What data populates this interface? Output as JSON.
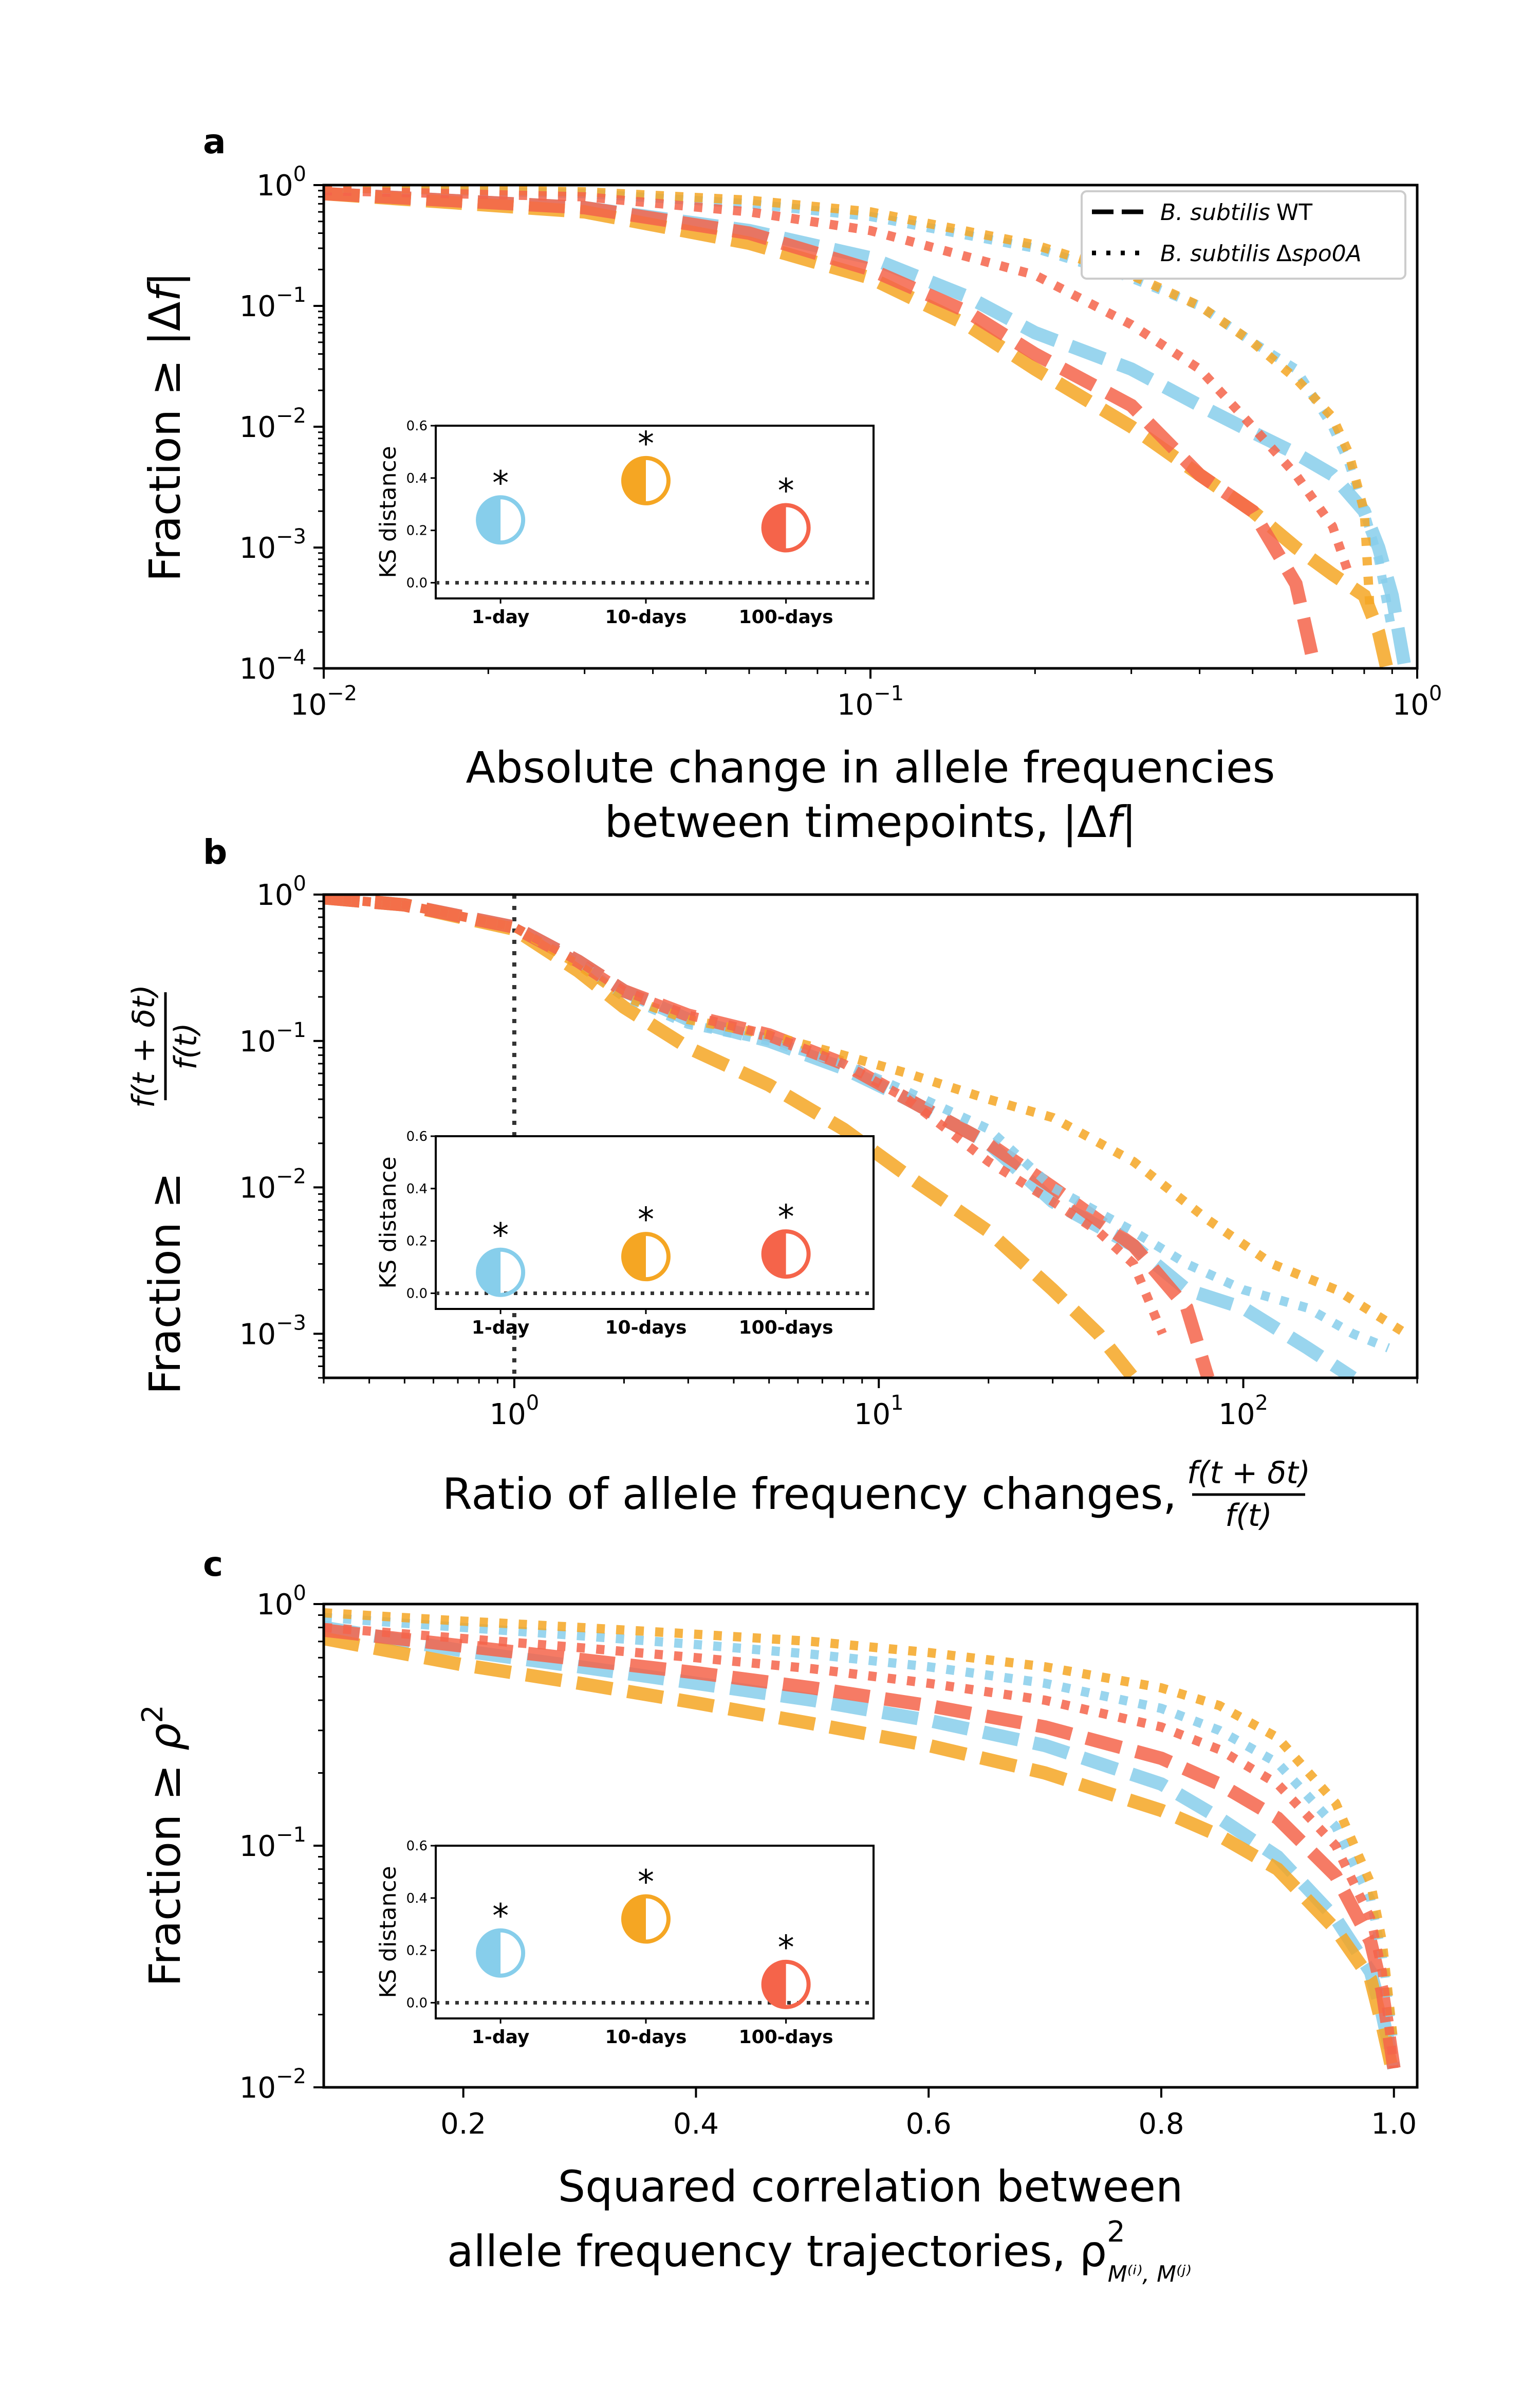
{
  "colors": {
    "day1": "#87ceeb",
    "day10": "#f5a623",
    "day100": "#f5644a",
    "axis": "#000000",
    "zero_line": "#333333"
  },
  "legend": {
    "wt": {
      "italic": "B. subtilis",
      "rest": "WT"
    },
    "spo": {
      "italic": "B. subtilis",
      "delta": "Δ",
      "italic2": "spo0A"
    }
  },
  "timescales": [
    "1-day",
    "10-days",
    "100-days"
  ],
  "panels": {
    "a": {
      "letter": "a",
      "ylabel_parts": [
        "Fraction ",
        "≥",
        " |Δ",
        "f",
        "|"
      ],
      "xlabel_line1": "Absolute change in allele frequencies",
      "xlabel_line2_parts": [
        "between timepoints, |Δ",
        "f",
        "|"
      ],
      "xticks": [
        {
          "v": 0.01,
          "b": "10",
          "e": "−2"
        },
        {
          "v": 0.1,
          "b": "10",
          "e": "−1"
        },
        {
          "v": 1,
          "b": "10",
          "e": "0"
        }
      ],
      "yticks": [
        {
          "v": 1,
          "b": "10",
          "e": "0"
        },
        {
          "v": 0.1,
          "b": "10",
          "e": "−1"
        },
        {
          "v": 0.01,
          "b": "10",
          "e": "−2"
        },
        {
          "v": 0.001,
          "b": "10",
          "e": "−3"
        },
        {
          "v": 0.0001,
          "b": "10",
          "e": "−4"
        }
      ]
    },
    "b": {
      "letter": "b",
      "ylabel_parts": [
        "Fraction ",
        "≥"
      ],
      "ylabel_frac_num": "f(t + δt)",
      "ylabel_frac_den": "f(t)",
      "xlabel_text": "Ratio of allele frequency changes,",
      "xlabel_frac_num": "f(t + δt)",
      "xlabel_frac_den": "f(t)",
      "xticks": [
        {
          "v": 1,
          "b": "10",
          "e": "0"
        },
        {
          "v": 10,
          "b": "10",
          "e": "1"
        },
        {
          "v": 100,
          "b": "10",
          "e": "2"
        }
      ],
      "yticks": [
        {
          "v": 1,
          "b": "10",
          "e": "0"
        },
        {
          "v": 0.1,
          "b": "10",
          "e": "−1"
        },
        {
          "v": 0.01,
          "b": "10",
          "e": "−2"
        },
        {
          "v": 0.001,
          "b": "10",
          "e": "−3"
        }
      ]
    },
    "c": {
      "letter": "c",
      "ylabel_parts": [
        "Fraction ",
        "≥",
        " ρ",
        "2"
      ],
      "xlabel_line1": "Squared correlation between",
      "xlabel_line2_text": "allele frequency trajectories, ρ",
      "xlabel_line2_sup": "2",
      "xlabel_line2_sub": "M⁽ⁱ⁾, M⁽ʲ⁾",
      "xticks": [
        {
          "v": 0.2,
          "t": "0.2"
        },
        {
          "v": 0.4,
          "t": "0.4"
        },
        {
          "v": 0.6,
          "t": "0.6"
        },
        {
          "v": 0.8,
          "t": "0.8"
        },
        {
          "v": 1.0,
          "t": "1.0"
        }
      ],
      "yticks": [
        {
          "v": 1,
          "b": "10",
          "e": "0"
        },
        {
          "v": 0.1,
          "b": "10",
          "e": "−1"
        },
        {
          "v": 0.01,
          "b": "10",
          "e": "−2"
        }
      ]
    }
  },
  "inset": {
    "ylabel": "KS distance",
    "yticks": [
      "0.0",
      "0.2",
      "0.4",
      "0.6"
    ],
    "marker": "*"
  },
  "chart_data": [
    {
      "panel": "a",
      "type": "line",
      "xscale": "log",
      "yscale": "log",
      "xlim": [
        0.01,
        1.0
      ],
      "ylim": [
        0.0001,
        1.0
      ],
      "series": [
        {
          "strain": "WT",
          "timescale": "1-day",
          "x": [
            0.01,
            0.03,
            0.06,
            0.1,
            0.15,
            0.2,
            0.3,
            0.4,
            0.5,
            0.6,
            0.7,
            0.8,
            0.85,
            0.9,
            0.95
          ],
          "y": [
            0.85,
            0.65,
            0.42,
            0.25,
            0.12,
            0.06,
            0.03,
            0.015,
            0.009,
            0.006,
            0.004,
            0.002,
            0.001,
            0.0004,
            0.0001
          ]
        },
        {
          "strain": "WT",
          "timescale": "10-days",
          "x": [
            0.01,
            0.03,
            0.06,
            0.1,
            0.15,
            0.2,
            0.3,
            0.4,
            0.5,
            0.6,
            0.7,
            0.8,
            0.85,
            0.88
          ],
          "y": [
            0.85,
            0.6,
            0.33,
            0.17,
            0.07,
            0.03,
            0.01,
            0.004,
            0.002,
            0.001,
            0.0006,
            0.0004,
            0.0002,
            0.0001
          ]
        },
        {
          "strain": "WT",
          "timescale": "100-days",
          "x": [
            0.01,
            0.03,
            0.06,
            0.1,
            0.15,
            0.2,
            0.3,
            0.4,
            0.5,
            0.6,
            0.65
          ],
          "y": [
            0.85,
            0.65,
            0.4,
            0.2,
            0.09,
            0.04,
            0.015,
            0.004,
            0.002,
            0.0005,
            0.0001
          ]
        },
        {
          "strain": "Δspo0A",
          "timescale": "1-day",
          "x": [
            0.01,
            0.03,
            0.06,
            0.1,
            0.2,
            0.3,
            0.4,
            0.5,
            0.6,
            0.7,
            0.75,
            0.8,
            0.85,
            0.9
          ],
          "y": [
            0.95,
            0.85,
            0.7,
            0.55,
            0.3,
            0.17,
            0.1,
            0.05,
            0.03,
            0.01,
            0.005,
            0.002,
            0.0008,
            0.0002
          ]
        },
        {
          "strain": "Δspo0A",
          "timescale": "10-days",
          "x": [
            0.01,
            0.03,
            0.06,
            0.1,
            0.2,
            0.3,
            0.4,
            0.5,
            0.6,
            0.7,
            0.75,
            0.8,
            0.82
          ],
          "y": [
            0.95,
            0.88,
            0.75,
            0.6,
            0.32,
            0.18,
            0.1,
            0.05,
            0.025,
            0.012,
            0.006,
            0.002,
            0.0003
          ]
        },
        {
          "strain": "Δspo0A",
          "timescale": "100-days",
          "x": [
            0.01,
            0.03,
            0.06,
            0.1,
            0.2,
            0.3,
            0.4,
            0.5,
            0.6,
            0.7,
            0.75
          ],
          "y": [
            0.9,
            0.8,
            0.6,
            0.42,
            0.18,
            0.07,
            0.03,
            0.01,
            0.004,
            0.0015,
            0.0006
          ]
        }
      ],
      "inset_ks": {
        "1-day": 0.24,
        "10-days": 0.39,
        "100-days": 0.21
      }
    },
    {
      "panel": "b",
      "type": "line",
      "xscale": "log",
      "yscale": "log",
      "xlim": [
        0.3,
        300
      ],
      "ylim": [
        0.0005,
        1.0
      ],
      "vline_x": 1.0,
      "series": [
        {
          "strain": "WT",
          "timescale": "1-day",
          "x": [
            0.3,
            0.5,
            1,
            1.5,
            2,
            3,
            5,
            8,
            12,
            20,
            30,
            50,
            70,
            100,
            150,
            200
          ],
          "y": [
            0.95,
            0.85,
            0.6,
            0.35,
            0.22,
            0.14,
            0.1,
            0.065,
            0.04,
            0.02,
            0.008,
            0.004,
            0.002,
            0.0015,
            0.0008,
            0.0005
          ]
        },
        {
          "strain": "WT",
          "timescale": "10-days",
          "x": [
            0.3,
            0.5,
            1,
            1.5,
            2,
            3,
            5,
            8,
            12,
            20,
            30,
            40,
            50
          ],
          "y": [
            0.95,
            0.85,
            0.58,
            0.3,
            0.17,
            0.09,
            0.05,
            0.025,
            0.012,
            0.005,
            0.002,
            0.001,
            0.0005
          ]
        },
        {
          "strain": "WT",
          "timescale": "100-days",
          "x": [
            0.3,
            0.5,
            1,
            1.5,
            2,
            3,
            5,
            8,
            12,
            20,
            30,
            50,
            70,
            80
          ],
          "y": [
            0.95,
            0.85,
            0.6,
            0.35,
            0.22,
            0.15,
            0.11,
            0.07,
            0.04,
            0.02,
            0.01,
            0.004,
            0.0015,
            0.0005
          ]
        },
        {
          "strain": "Δspo0A",
          "timescale": "1-day",
          "x": [
            0.3,
            0.5,
            1,
            1.5,
            2,
            3,
            5,
            8,
            12,
            20,
            30,
            50,
            70,
            100,
            150,
            200,
            250
          ],
          "y": [
            0.95,
            0.85,
            0.6,
            0.35,
            0.2,
            0.13,
            0.1,
            0.07,
            0.045,
            0.025,
            0.01,
            0.005,
            0.003,
            0.002,
            0.0015,
            0.001,
            0.0008
          ]
        },
        {
          "strain": "Δspo0A",
          "timescale": "10-days",
          "x": [
            0.3,
            0.5,
            1,
            1.5,
            2,
            3,
            5,
            8,
            12,
            20,
            30,
            50,
            80,
            120,
            180,
            280
          ],
          "y": [
            0.95,
            0.85,
            0.6,
            0.33,
            0.2,
            0.14,
            0.11,
            0.08,
            0.06,
            0.04,
            0.03,
            0.015,
            0.006,
            0.003,
            0.002,
            0.001
          ]
        },
        {
          "strain": "Δspo0A",
          "timescale": "100-days",
          "x": [
            0.3,
            0.5,
            1,
            1.5,
            2,
            3,
            5,
            8,
            12,
            20,
            30,
            40,
            50,
            60
          ],
          "y": [
            0.95,
            0.85,
            0.6,
            0.35,
            0.22,
            0.15,
            0.11,
            0.07,
            0.04,
            0.015,
            0.008,
            0.005,
            0.003,
            0.001
          ]
        }
      ],
      "inset_ks": {
        "1-day": 0.08,
        "10-days": 0.14,
        "100-days": 0.15
      }
    },
    {
      "panel": "c",
      "type": "line",
      "xscale": "linear",
      "yscale": "log",
      "xlim": [
        0.08,
        1.02
      ],
      "ylim": [
        0.01,
        1.0
      ],
      "series": [
        {
          "strain": "WT",
          "timescale": "1-day",
          "x": [
            0.08,
            0.2,
            0.3,
            0.4,
            0.5,
            0.6,
            0.7,
            0.8,
            0.85,
            0.9,
            0.95,
            0.98,
            0.99,
            1.0
          ],
          "y": [
            0.8,
            0.64,
            0.55,
            0.47,
            0.4,
            0.33,
            0.26,
            0.18,
            0.13,
            0.09,
            0.05,
            0.03,
            0.02,
            0.012
          ]
        },
        {
          "strain": "WT",
          "timescale": "10-days",
          "x": [
            0.08,
            0.2,
            0.3,
            0.4,
            0.5,
            0.6,
            0.7,
            0.8,
            0.85,
            0.9,
            0.95,
            0.98,
            0.99,
            1.0
          ],
          "y": [
            0.72,
            0.56,
            0.47,
            0.39,
            0.32,
            0.26,
            0.2,
            0.14,
            0.11,
            0.08,
            0.045,
            0.028,
            0.018,
            0.011
          ]
        },
        {
          "strain": "WT",
          "timescale": "100-days",
          "x": [
            0.08,
            0.2,
            0.3,
            0.4,
            0.5,
            0.6,
            0.7,
            0.8,
            0.85,
            0.9,
            0.95,
            0.98,
            0.99,
            1.0
          ],
          "y": [
            0.78,
            0.67,
            0.59,
            0.52,
            0.45,
            0.38,
            0.31,
            0.23,
            0.18,
            0.13,
            0.075,
            0.04,
            0.025,
            0.012
          ]
        },
        {
          "strain": "Δspo0A",
          "timescale": "1-day",
          "x": [
            0.08,
            0.2,
            0.3,
            0.4,
            0.5,
            0.6,
            0.7,
            0.8,
            0.85,
            0.9,
            0.95,
            0.98,
            0.99,
            1.0
          ],
          "y": [
            0.88,
            0.8,
            0.74,
            0.68,
            0.62,
            0.55,
            0.47,
            0.37,
            0.3,
            0.22,
            0.12,
            0.06,
            0.035,
            0.015
          ]
        },
        {
          "strain": "Δspo0A",
          "timescale": "10-days",
          "x": [
            0.08,
            0.2,
            0.3,
            0.4,
            0.5,
            0.6,
            0.7,
            0.8,
            0.85,
            0.9,
            0.95,
            0.98,
            0.99,
            1.0
          ],
          "y": [
            0.92,
            0.85,
            0.8,
            0.75,
            0.7,
            0.63,
            0.55,
            0.45,
            0.38,
            0.28,
            0.15,
            0.07,
            0.04,
            0.015
          ]
        },
        {
          "strain": "Δspo0A",
          "timescale": "100-days",
          "x": [
            0.08,
            0.2,
            0.3,
            0.4,
            0.5,
            0.6,
            0.7,
            0.8,
            0.85,
            0.9,
            0.95,
            0.98,
            0.99,
            1.0
          ],
          "y": [
            0.8,
            0.72,
            0.66,
            0.6,
            0.54,
            0.47,
            0.4,
            0.31,
            0.25,
            0.18,
            0.1,
            0.05,
            0.03,
            0.012
          ]
        }
      ],
      "inset_ks": {
        "1-day": 0.19,
        "10-days": 0.32,
        "100-days": 0.07
      }
    }
  ]
}
